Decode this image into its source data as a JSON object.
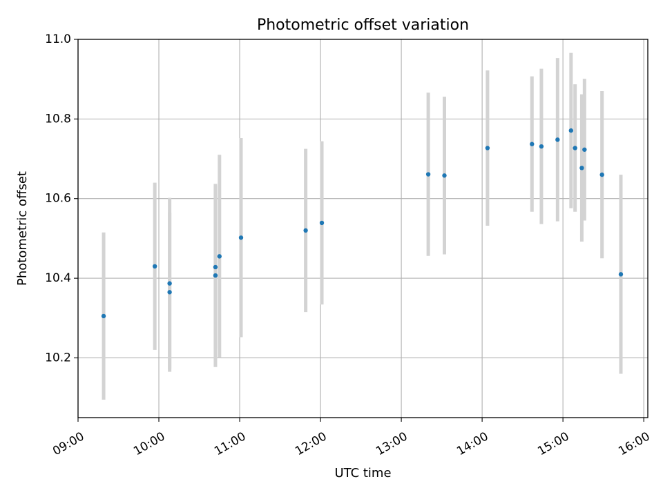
{
  "chart_data": {
    "type": "scatter",
    "title": "Photometric offset variation",
    "xlabel": "UTC time",
    "ylabel": "Photometric offset",
    "xlim": [
      "09:00",
      "16:03"
    ],
    "ylim": [
      10.05,
      11.0
    ],
    "x_ticks": [
      "09:00",
      "10:00",
      "11:00",
      "12:00",
      "13:00",
      "14:00",
      "15:00",
      "16:00"
    ],
    "y_ticks": [
      "10.2",
      "10.4",
      "10.6",
      "10.8",
      "11.0"
    ],
    "grid": true,
    "series": [
      {
        "color": "#1f77b4",
        "errorbar_color": "#d3d3d3",
        "points": [
          {
            "x": "09:19",
            "y": 10.305,
            "err": 0.21
          },
          {
            "x": "09:57",
            "y": 10.43,
            "err": 0.21
          },
          {
            "x": "10:08",
            "y": 10.387,
            "err": 0.215
          },
          {
            "x": "10:08",
            "y": 10.365,
            "err": 0.2
          },
          {
            "x": "10:42",
            "y": 10.428,
            "err": 0.205
          },
          {
            "x": "10:42",
            "y": 10.407,
            "err": 0.23
          },
          {
            "x": "10:45",
            "y": 10.455,
            "err": 0.255
          },
          {
            "x": "11:01",
            "y": 10.502,
            "err": 0.25
          },
          {
            "x": "11:49",
            "y": 10.52,
            "err": 0.205
          },
          {
            "x": "12:01",
            "y": 10.539,
            "err": 0.205
          },
          {
            "x": "13:20",
            "y": 10.661,
            "err": 0.205
          },
          {
            "x": "13:32",
            "y": 10.658,
            "err": 0.198
          },
          {
            "x": "14:04",
            "y": 10.727,
            "err": 0.195
          },
          {
            "x": "14:37",
            "y": 10.737,
            "err": 0.17
          },
          {
            "x": "14:44",
            "y": 10.731,
            "err": 0.195
          },
          {
            "x": "14:56",
            "y": 10.748,
            "err": 0.205
          },
          {
            "x": "15:06",
            "y": 10.771,
            "err": 0.195
          },
          {
            "x": "15:09",
            "y": 10.727,
            "err": 0.16
          },
          {
            "x": "15:14",
            "y": 10.677,
            "err": 0.185
          },
          {
            "x": "15:16",
            "y": 10.723,
            "err": 0.178
          },
          {
            "x": "15:29",
            "y": 10.66,
            "err": 0.21
          },
          {
            "x": "15:43",
            "y": 10.41,
            "err": 0.25
          }
        ]
      }
    ]
  }
}
